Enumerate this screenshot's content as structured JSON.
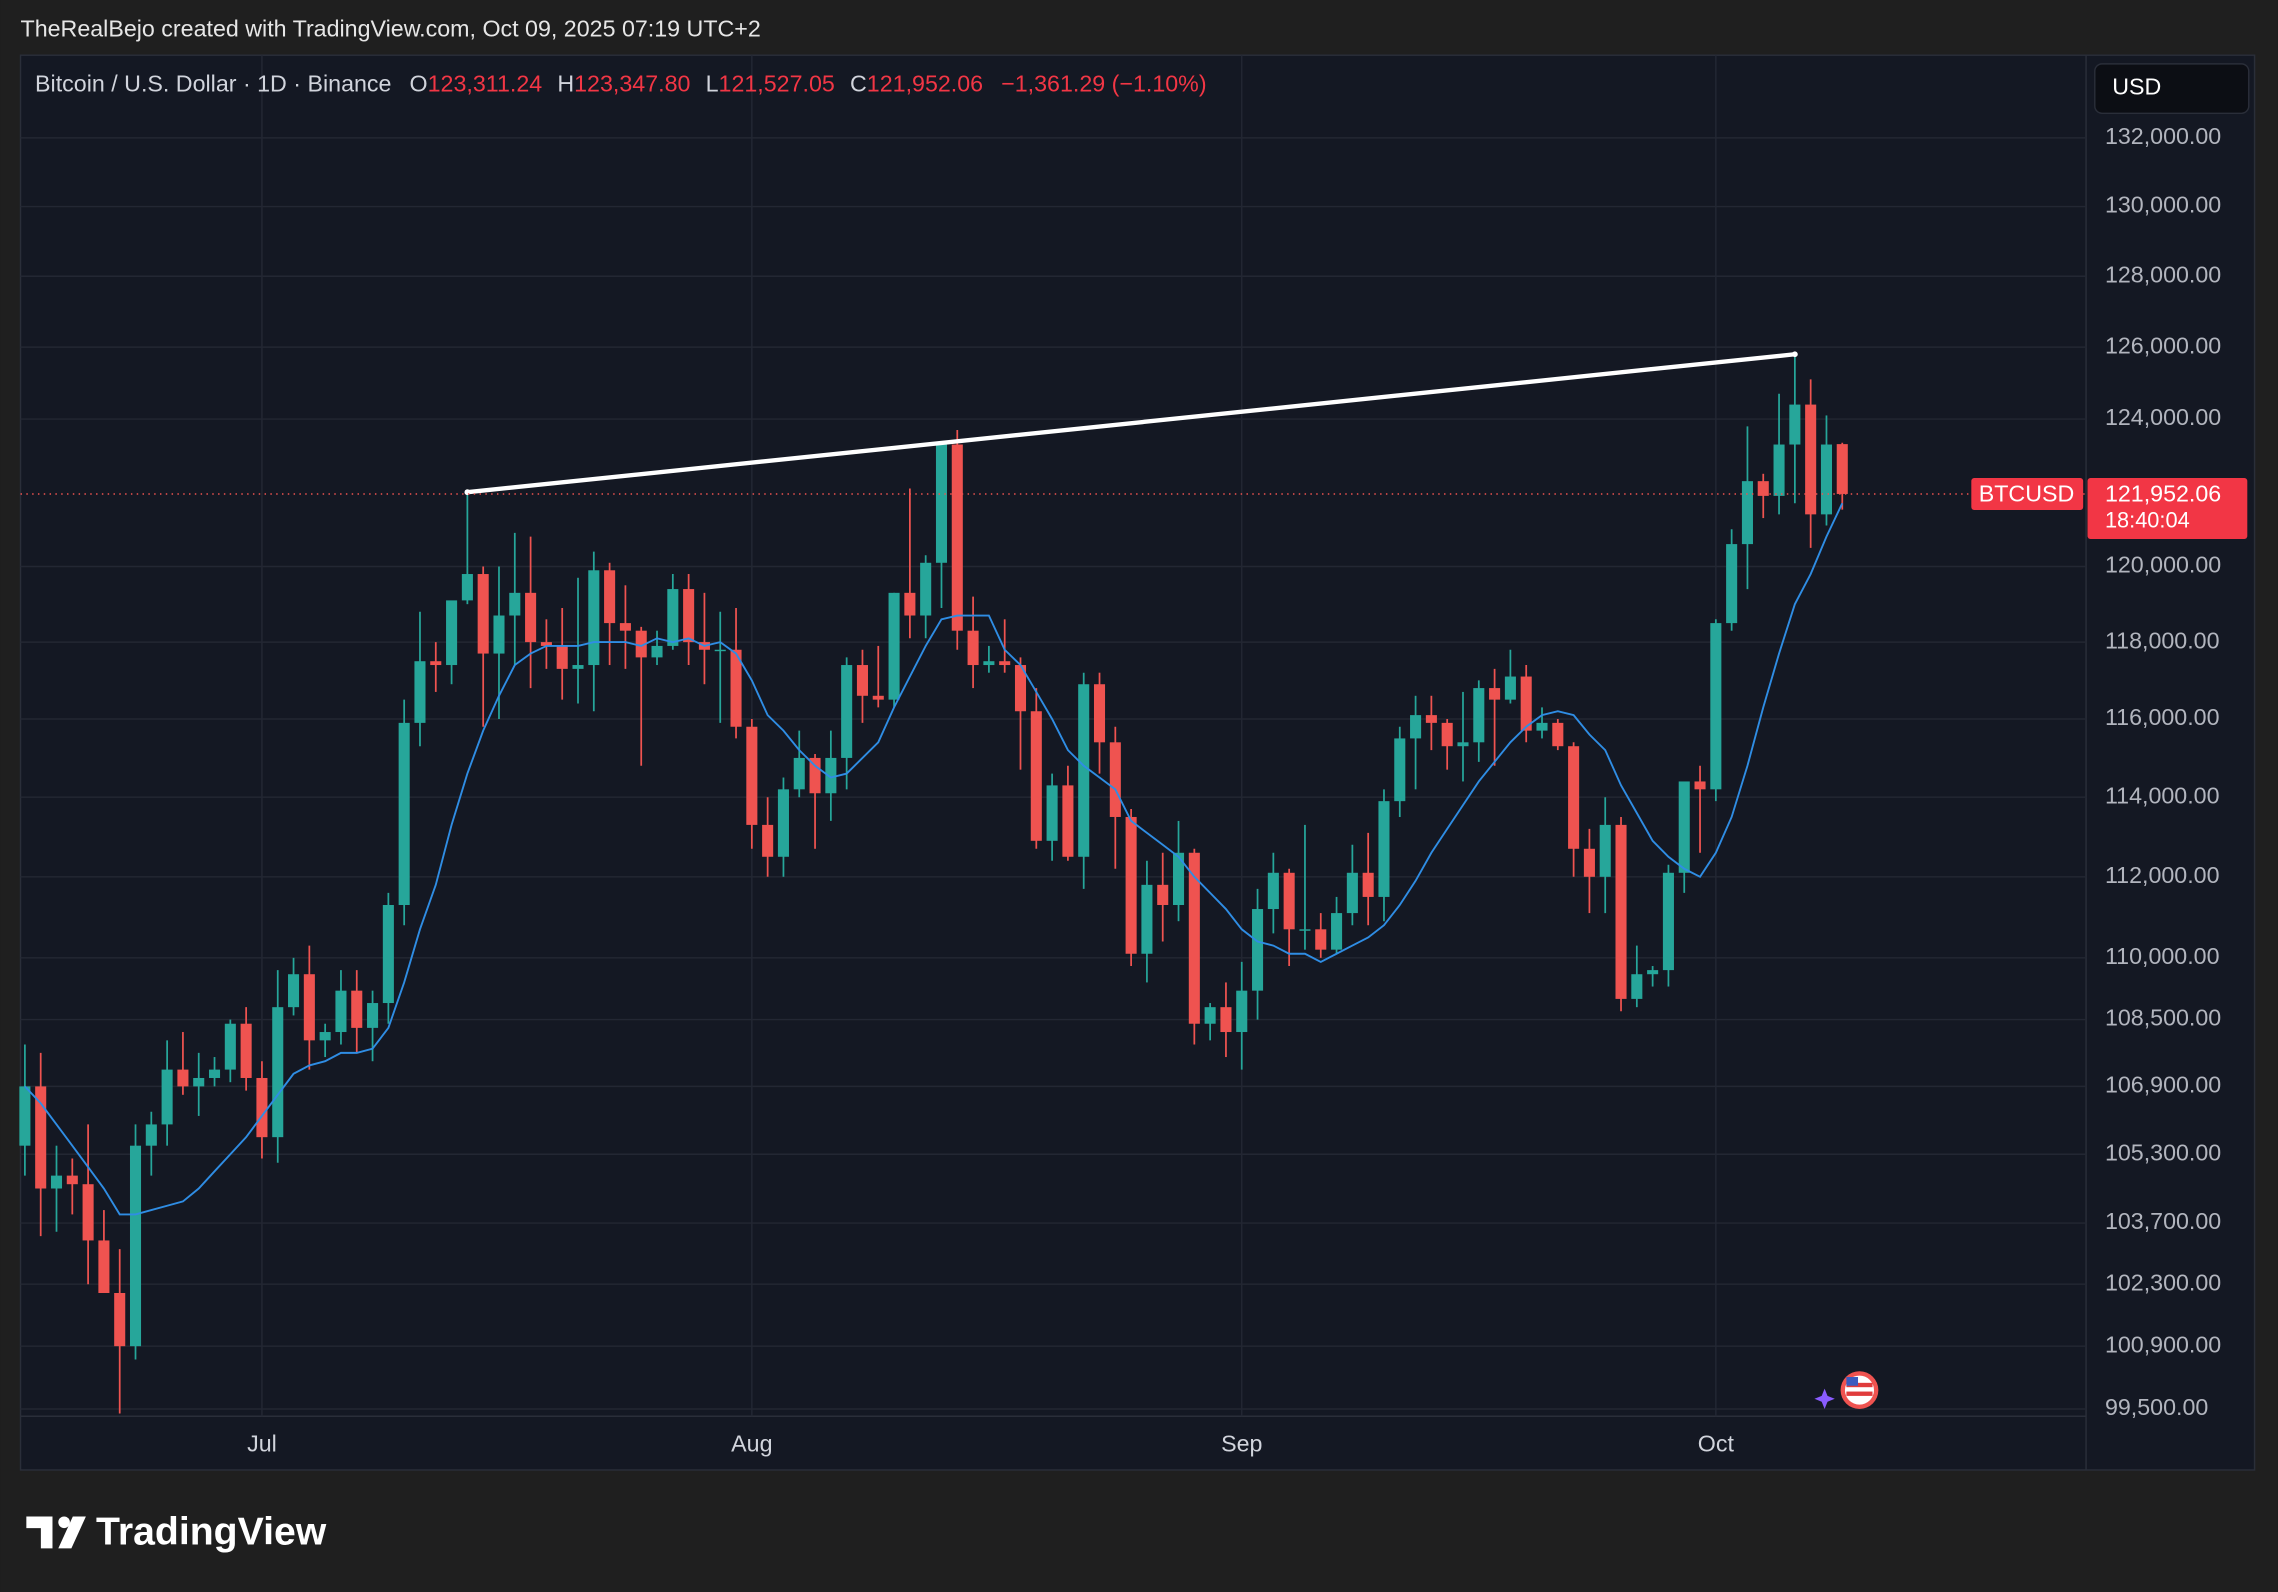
{
  "header": "TheRealBejo created with TradingView.com, Oct 09, 2025 07:19 UTC+2",
  "footer_logo": "TradingView",
  "chart_data": {
    "type": "candlestick",
    "title": "Bitcoin / U.S. Dollar · 1D · Binance",
    "header_values": [
      {
        "label": "O",
        "text": "123,311.24"
      },
      {
        "label": "H",
        "text": "123,347.80"
      },
      {
        "label": "L",
        "text": "121,527.05"
      },
      {
        "label": "C",
        "text": "121,952.06"
      }
    ],
    "change": "−1,361.29 (−1.10%)",
    "currency": "USD",
    "price_label": {
      "symbol": "BTCUSD",
      "price": "121,952.06",
      "countdown": "18:40:04"
    },
    "up_color": "#26a69a",
    "down_color": "#ef5350",
    "log": true,
    "grid": true,
    "ylim": [
      99340,
      134450
    ],
    "yticks": [
      {
        "value": 132000,
        "label": "132,000.00"
      },
      {
        "value": 130000,
        "label": "130,000.00"
      },
      {
        "value": 128000,
        "label": "128,000.00"
      },
      {
        "value": 126000,
        "label": "126,000.00"
      },
      {
        "value": 124000,
        "label": "124,000.00"
      },
      {
        "value": 120000,
        "label": "120,000.00"
      },
      {
        "value": 118000,
        "label": "118,000.00"
      },
      {
        "value": 116000,
        "label": "116,000.00"
      },
      {
        "value": 114000,
        "label": "114,000.00"
      },
      {
        "value": 112000,
        "label": "112,000.00"
      },
      {
        "value": 110000,
        "label": "110,000.00"
      },
      {
        "value": 108500,
        "label": "108,500.00"
      },
      {
        "value": 106900,
        "label": "106,900.00"
      },
      {
        "value": 105300,
        "label": "105,300.00"
      },
      {
        "value": 103700,
        "label": "103,700.00"
      },
      {
        "value": 102300,
        "label": "102,300.00"
      },
      {
        "value": 100900,
        "label": "100,900.00"
      },
      {
        "value": 99500,
        "label": "99,500.00"
      }
    ],
    "categories": [
      null,
      null,
      null,
      null,
      null,
      null,
      null,
      null,
      null,
      null,
      null,
      null,
      null,
      null,
      null,
      "Jul",
      null,
      null,
      null,
      null,
      null,
      null,
      null,
      null,
      null,
      null,
      null,
      null,
      null,
      null,
      null,
      null,
      null,
      null,
      null,
      null,
      null,
      null,
      null,
      null,
      null,
      null,
      null,
      null,
      null,
      null,
      "Aug",
      null,
      null,
      null,
      null,
      null,
      null,
      null,
      null,
      null,
      null,
      null,
      null,
      null,
      null,
      null,
      null,
      null,
      null,
      null,
      null,
      null,
      null,
      null,
      null,
      null,
      null,
      null,
      null,
      null,
      null,
      "Sep",
      null,
      null,
      null,
      null,
      null,
      null,
      null,
      null,
      null,
      null,
      null,
      null,
      null,
      null,
      null,
      null,
      null,
      null,
      null,
      null,
      null,
      null,
      null,
      null,
      null,
      null,
      null,
      null,
      null,
      "Oct",
      null,
      null,
      null,
      null,
      null,
      null,
      null,
      null
    ],
    "open": [
      105500,
      106900,
      104500,
      104800,
      104600,
      103300,
      102100,
      100900,
      105500,
      106000,
      107300,
      106900,
      107100,
      107300,
      108400,
      107100,
      105700,
      108800,
      109600,
      108000,
      108200,
      109200,
      108300,
      108900,
      111300,
      115900,
      117500,
      117400,
      119100,
      119800,
      117700,
      118700,
      119300,
      118000,
      117900,
      117300,
      117400,
      119900,
      118500,
      118300,
      117600,
      117900,
      119400,
      118000,
      117800,
      117800,
      115800,
      113300,
      112500,
      114200,
      115000,
      114100,
      115000,
      117400,
      116600,
      116500,
      119300,
      118700,
      120100,
      123300,
      118300,
      117400,
      117500,
      117400,
      116200,
      112900,
      114300,
      112500,
      116900,
      115400,
      113500,
      110100,
      111800,
      111300,
      112600,
      108400,
      108800,
      108200,
      109200,
      111200,
      112100,
      110700,
      110700,
      110200,
      111100,
      112100,
      111500,
      113900,
      115500,
      116100,
      115900,
      115300,
      115400,
      116800,
      116500,
      117100,
      115700,
      115900,
      115300,
      112700,
      112000,
      113300,
      109000,
      109600,
      109700,
      112100,
      114400,
      114200,
      118500,
      120600,
      122300,
      121900,
      123300,
      124400,
      121400,
      123311.24
    ],
    "high": [
      107900,
      107700,
      105500,
      105200,
      106000,
      104000,
      103100,
      106000,
      106300,
      108000,
      108200,
      107700,
      107600,
      108500,
      108800,
      107500,
      109700,
      110000,
      110300,
      108400,
      109700,
      109700,
      109200,
      111600,
      116500,
      118800,
      118000,
      119000,
      122000,
      120000,
      120000,
      120900,
      120800,
      118600,
      118900,
      119700,
      120400,
      120100,
      119500,
      118400,
      118300,
      119800,
      119800,
      119300,
      118800,
      118900,
      116000,
      114000,
      114500,
      115700,
      115100,
      115700,
      117600,
      117800,
      117900,
      119300,
      122100,
      120300,
      123300,
      123700,
      119200,
      117900,
      118600,
      117600,
      116800,
      114600,
      114800,
      117200,
      117200,
      115800,
      113700,
      112400,
      112600,
      113400,
      112700,
      108900,
      109400,
      109900,
      111700,
      112600,
      112200,
      113300,
      111100,
      111500,
      112800,
      113100,
      114200,
      115800,
      116600,
      116600,
      116000,
      116700,
      117000,
      117300,
      117800,
      117400,
      116300,
      116000,
      115400,
      113200,
      114000,
      113500,
      110300,
      109800,
      112300,
      114400,
      114800,
      118600,
      121000,
      123800,
      122500,
      124700,
      125800,
      125100,
      124100,
      123347.8
    ],
    "low": [
      104800,
      103400,
      103500,
      103900,
      102300,
      102100,
      99400,
      100600,
      104800,
      105500,
      106700,
      106200,
      106900,
      107000,
      106800,
      105200,
      105100,
      108600,
      107300,
      107600,
      107900,
      107700,
      107500,
      108400,
      110800,
      115300,
      116700,
      116900,
      119000,
      115800,
      116000,
      117400,
      116800,
      117300,
      116500,
      116400,
      116200,
      117400,
      117300,
      114800,
      117400,
      117800,
      117400,
      116900,
      115900,
      115500,
      112700,
      112000,
      112000,
      114000,
      112700,
      113400,
      114200,
      115900,
      116300,
      116300,
      118100,
      118100,
      118900,
      117800,
      116800,
      117200,
      117200,
      114700,
      112700,
      112400,
      112400,
      111700,
      114600,
      112200,
      109800,
      109400,
      110400,
      110900,
      107900,
      108000,
      107600,
      107300,
      108500,
      110600,
      109800,
      110200,
      110000,
      110100,
      110800,
      110800,
      110900,
      113500,
      114200,
      115200,
      114700,
      114400,
      114900,
      114800,
      116400,
      115400,
      115500,
      115200,
      112000,
      111100,
      111100,
      108700,
      108800,
      109300,
      109300,
      111600,
      112600,
      113900,
      118300,
      119400,
      121300,
      121400,
      121700,
      120500,
      121100,
      121527.05
    ],
    "close": [
      106900,
      104500,
      104800,
      104600,
      103300,
      102100,
      100900,
      105500,
      106000,
      107300,
      106900,
      107100,
      107300,
      108400,
      107100,
      105700,
      108800,
      109600,
      108000,
      108200,
      109200,
      108300,
      108900,
      111300,
      115900,
      117500,
      117400,
      119100,
      119800,
      117700,
      118700,
      119300,
      118000,
      117900,
      117300,
      117400,
      119900,
      118500,
      118300,
      117600,
      117900,
      119400,
      118000,
      117800,
      117800,
      115800,
      113300,
      112500,
      114200,
      115000,
      114100,
      115000,
      117400,
      116600,
      116500,
      119300,
      118700,
      120100,
      123300,
      118300,
      117400,
      117500,
      117400,
      116200,
      112900,
      114300,
      112500,
      116900,
      115400,
      113500,
      110100,
      111800,
      111300,
      112600,
      108400,
      108800,
      108200,
      109200,
      111200,
      112100,
      110700,
      110700,
      110200,
      111100,
      112100,
      111500,
      113900,
      115500,
      116100,
      115900,
      115300,
      115400,
      116800,
      116500,
      117100,
      115700,
      115900,
      115300,
      112700,
      112000,
      113300,
      109000,
      109600,
      109700,
      112100,
      114400,
      114200,
      118500,
      120600,
      122300,
      121900,
      123300,
      124400,
      121400,
      123300,
      121952.06
    ],
    "ma": {
      "color": "#2f8de4",
      "values": [
        106900,
        106500,
        106000,
        105500,
        105000,
        104500,
        103900,
        103900,
        104000,
        104100,
        104200,
        104500,
        104900,
        105300,
        105700,
        106200,
        106700,
        107200,
        107400,
        107500,
        107700,
        107700,
        107800,
        108300,
        109400,
        110700,
        111800,
        113300,
        114600,
        115700,
        116600,
        117400,
        117700,
        117900,
        117900,
        117900,
        118000,
        118000,
        118000,
        117900,
        118100,
        118000,
        118100,
        117900,
        118000,
        117700,
        117000,
        116100,
        115700,
        115200,
        114800,
        114500,
        114600,
        115000,
        115400,
        116300,
        117100,
        117900,
        118600,
        118700,
        118700,
        118700,
        117800,
        117400,
        116700,
        116000,
        115200,
        114800,
        114500,
        114200,
        113400,
        113100,
        112800,
        112500,
        112000,
        111600,
        111200,
        110700,
        110400,
        110300,
        110100,
        110100,
        109900,
        110100,
        110300,
        110500,
        110800,
        111300,
        111900,
        112600,
        113200,
        113800,
        114400,
        114900,
        115400,
        115800,
        116100,
        116200,
        116100,
        115600,
        115200,
        114300,
        113600,
        112900,
        112500,
        112200,
        112000,
        112600,
        113500,
        114800,
        116300,
        117700,
        119000,
        119800,
        120800,
        121700
      ]
    },
    "trendline": {
      "color": "#ffffff",
      "values": [
        null,
        null,
        null,
        null,
        null,
        null,
        null,
        null,
        null,
        null,
        null,
        null,
        null,
        null,
        null,
        null,
        null,
        null,
        null,
        null,
        null,
        null,
        null,
        null,
        null,
        null,
        null,
        null,
        122000,
        null,
        null,
        null,
        null,
        null,
        null,
        null,
        null,
        null,
        null,
        null,
        null,
        null,
        null,
        null,
        null,
        null,
        null,
        null,
        null,
        null,
        null,
        null,
        null,
        null,
        null,
        null,
        null,
        null,
        null,
        null,
        null,
        null,
        null,
        null,
        null,
        null,
        null,
        null,
        null,
        null,
        null,
        null,
        null,
        null,
        null,
        null,
        null,
        null,
        null,
        null,
        null,
        null,
        null,
        null,
        null,
        null,
        null,
        null,
        null,
        null,
        null,
        null,
        null,
        null,
        null,
        null,
        null,
        null,
        null,
        null,
        null,
        null,
        null,
        null,
        null,
        null,
        null,
        null,
        null,
        null,
        null,
        null,
        125800,
        null,
        null,
        null
      ]
    }
  }
}
